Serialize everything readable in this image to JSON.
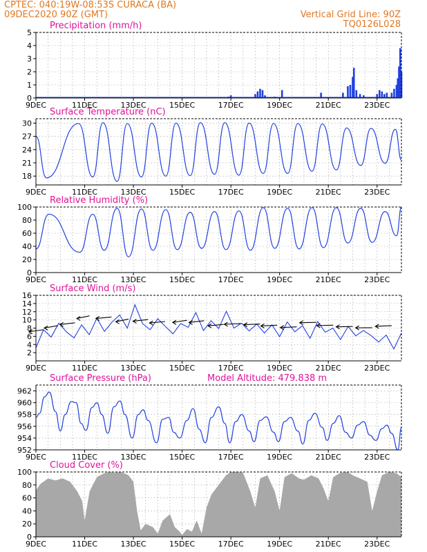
{
  "header": {
    "line1": "CPTEC:   040:19W-08:53S   CURACA (BA)",
    "line2": "09DEC2020 90Z (GMT)",
    "right1": "Vertical Grid Line: 90Z",
    "right2": "TQ0126L028"
  },
  "colors": {
    "header": "#e07820",
    "title": "#e0129a",
    "series": "#2040e0",
    "cloud": "#a8a8a8",
    "vector": "#000000"
  },
  "x_ticks": [
    "9DEC",
    "11DEC",
    "13DEC",
    "15DEC",
    "17DEC",
    "19DEC",
    "21DEC",
    "23DEC"
  ],
  "chart_data": [
    {
      "type": "bar",
      "title": "Precipitation (mm/h)",
      "x_range_days": [
        9,
        24
      ],
      "ylim": [
        0,
        5
      ],
      "yticks": [
        "0",
        "1",
        "2",
        "3",
        "4",
        "5"
      ],
      "bars": [
        [
          16.9,
          0.1
        ],
        [
          17.0,
          0.2
        ],
        [
          18.0,
          0.3
        ],
        [
          18.1,
          0.5
        ],
        [
          18.2,
          0.7
        ],
        [
          18.3,
          0.6
        ],
        [
          18.4,
          0.2
        ],
        [
          18.8,
          0.1
        ],
        [
          19.1,
          0.6
        ],
        [
          20.7,
          0.4
        ],
        [
          21.6,
          0.4
        ],
        [
          21.8,
          0.9
        ],
        [
          21.9,
          1.0
        ],
        [
          22.0,
          1.6
        ],
        [
          22.05,
          2.3
        ],
        [
          22.15,
          0.6
        ],
        [
          22.3,
          0.3
        ],
        [
          22.45,
          0.2
        ],
        [
          23.0,
          0.3
        ],
        [
          23.1,
          0.6
        ],
        [
          23.2,
          0.5
        ],
        [
          23.3,
          0.3
        ],
        [
          23.4,
          0.4
        ],
        [
          23.6,
          0.4
        ],
        [
          23.7,
          0.7
        ],
        [
          23.8,
          1.0
        ],
        [
          23.85,
          1.5
        ],
        [
          23.9,
          2.4
        ],
        [
          23.95,
          3.8
        ],
        [
          24.0,
          2.0
        ]
      ]
    },
    {
      "type": "line",
      "title": "Surface Temperature (nC)",
      "x_range_days": [
        9,
        24
      ],
      "ylim": [
        16,
        31
      ],
      "yticks": [
        "18",
        "21",
        "24",
        "27",
        "30"
      ],
      "maxima": [
        29.7,
        29.9,
        30.1,
        29.9,
        30.0,
        30.0,
        30.1,
        30.1,
        30.0,
        29.9,
        29.9,
        29.8,
        28.9,
        28.8,
        28.6,
        26.5
      ],
      "minima": [
        17.6,
        17.8,
        16.8,
        17.8,
        18.0,
        18.1,
        18.4,
        18.2,
        18.6,
        18.6,
        19.1,
        19.4,
        20.4,
        20.9,
        20.6
      ]
    },
    {
      "type": "line",
      "title": "Relative Humidity (%)",
      "x_range_days": [
        9,
        24
      ],
      "ylim": [
        0,
        100
      ],
      "yticks": [
        "0",
        "20",
        "40",
        "60",
        "80",
        "100"
      ],
      "minima": [
        36,
        31,
        34,
        24,
        34,
        35,
        37,
        35,
        34,
        37,
        36,
        38,
        45,
        46,
        56,
        60
      ],
      "maxima": [
        89,
        89,
        98,
        97,
        96,
        92,
        93,
        94,
        99,
        98,
        99,
        99,
        98,
        93,
        98
      ]
    },
    {
      "type": "line",
      "title": "Surface Wind (m/s)",
      "x_range_days": [
        9,
        24
      ],
      "ylim": [
        0,
        16
      ],
      "yticks": [
        "2",
        "4",
        "6",
        "8",
        "10",
        "12",
        "14",
        "16"
      ],
      "speed": [
        3.2,
        7.6,
        5.8,
        9.2,
        7.1,
        5.6,
        8.8,
        6.4,
        10.4,
        7.2,
        9.5,
        11.2,
        8.0,
        13.7,
        9.1,
        7.6,
        10.3,
        8.4,
        6.6,
        9.1,
        8.2,
        11.8,
        7.4,
        9.8,
        7.9,
        12.1,
        8.0,
        9.2,
        7.3,
        9.0,
        6.8,
        8.8,
        5.9,
        9.5,
        7.1,
        8.6,
        5.5,
        9.6,
        7.0,
        8.0,
        5.2,
        8.4,
        6.1,
        7.4,
        6.2,
        4.6,
        6.3,
        2.9,
        6.8
      ],
      "arrows": [
        [
          9.3,
          7.6,
          120
        ],
        [
          9.9,
          8.6,
          125
        ],
        [
          10.6,
          9.3,
          115
        ],
        [
          11.2,
          11.0,
          130
        ],
        [
          12.1,
          10.7,
          110
        ],
        [
          12.8,
          10.2,
          130
        ],
        [
          13.6,
          10.1,
          115
        ],
        [
          14.3,
          9.6,
          110
        ],
        [
          15.2,
          9.9,
          120
        ],
        [
          15.9,
          9.8,
          115
        ],
        [
          16.7,
          8.9,
          110
        ],
        [
          17.4,
          9.1,
          100
        ],
        [
          18.2,
          9.0,
          100
        ],
        [
          18.9,
          8.7,
          100
        ],
        [
          19.7,
          8.3,
          100
        ],
        [
          20.5,
          9.4,
          95
        ],
        [
          21.2,
          8.7,
          95
        ],
        [
          22.0,
          8.4,
          95
        ],
        [
          22.8,
          8.1,
          92
        ],
        [
          23.6,
          8.6,
          100
        ]
      ]
    },
    {
      "type": "line",
      "title": "Surface Pressure (hPa)",
      "subtitle": "Model Altitude: 479.838  m",
      "x_range_days": [
        9,
        24
      ],
      "ylim": [
        952,
        963
      ],
      "yticks": [
        "952",
        "954",
        "956",
        "958",
        "960",
        "962"
      ],
      "series": [
        [
          9.0,
          957.5
        ],
        [
          9.15,
          958.2
        ],
        [
          9.35,
          961.0
        ],
        [
          9.55,
          961.8
        ],
        [
          9.8,
          958.5
        ],
        [
          10.0,
          955.2
        ],
        [
          10.2,
          958.0
        ],
        [
          10.45,
          960.2
        ],
        [
          10.65,
          960.0
        ],
        [
          10.85,
          956.5
        ],
        [
          11.05,
          955.3
        ],
        [
          11.3,
          959.2
        ],
        [
          11.5,
          960.0
        ],
        [
          11.7,
          958.0
        ],
        [
          11.95,
          954.8
        ],
        [
          12.2,
          959.3
        ],
        [
          12.45,
          960.3
        ],
        [
          12.65,
          958.0
        ],
        [
          12.95,
          954.0
        ],
        [
          13.2,
          958.0
        ],
        [
          13.4,
          958.8
        ],
        [
          13.6,
          957.0
        ],
        [
          13.95,
          953.2
        ],
        [
          14.2,
          957.2
        ],
        [
          14.45,
          957.5
        ],
        [
          14.65,
          955.0
        ],
        [
          14.9,
          954.0
        ],
        [
          15.2,
          957.0
        ],
        [
          15.45,
          959.0
        ],
        [
          15.7,
          955.5
        ],
        [
          15.95,
          953.2
        ],
        [
          16.2,
          957.5
        ],
        [
          16.5,
          959.3
        ],
        [
          16.75,
          956.5
        ],
        [
          16.95,
          953.2
        ],
        [
          17.2,
          956.8
        ],
        [
          17.45,
          958.0
        ],
        [
          17.75,
          955.2
        ],
        [
          17.95,
          953.4
        ],
        [
          18.2,
          957.0
        ],
        [
          18.45,
          957.6
        ],
        [
          18.75,
          955.0
        ],
        [
          18.95,
          953.4
        ],
        [
          19.2,
          956.8
        ],
        [
          19.45,
          957.5
        ],
        [
          19.75,
          955.2
        ],
        [
          19.95,
          953.0
        ],
        [
          20.2,
          957.0
        ],
        [
          20.45,
          958.2
        ],
        [
          20.75,
          955.8
        ],
        [
          20.95,
          953.6
        ],
        [
          21.2,
          956.5
        ],
        [
          21.45,
          957.8
        ],
        [
          21.7,
          955.0
        ],
        [
          21.95,
          954.0
        ],
        [
          22.2,
          956.2
        ],
        [
          22.45,
          956.8
        ],
        [
          22.7,
          954.5
        ],
        [
          22.95,
          953.6
        ],
        [
          23.2,
          955.6
        ],
        [
          23.4,
          956.2
        ],
        [
          23.6,
          954.8
        ],
        [
          23.85,
          952.0
        ],
        [
          24.0,
          955.8
        ]
      ]
    },
    {
      "type": "area",
      "title": "Cloud Cover (%)",
      "x_range_days": [
        9,
        24
      ],
      "ylim": [
        0,
        100
      ],
      "yticks": [
        "0",
        "20",
        "40",
        "60",
        "80",
        "100"
      ],
      "series": [
        [
          9.0,
          72
        ],
        [
          9.2,
          82
        ],
        [
          9.5,
          90
        ],
        [
          9.8,
          87
        ],
        [
          10.1,
          90
        ],
        [
          10.4,
          85
        ],
        [
          10.7,
          70
        ],
        [
          10.9,
          55
        ],
        [
          11.0,
          25
        ],
        [
          11.2,
          70
        ],
        [
          11.5,
          92
        ],
        [
          11.8,
          98
        ],
        [
          12.0,
          100
        ],
        [
          12.2,
          99
        ],
        [
          12.5,
          100
        ],
        [
          12.8,
          95
        ],
        [
          13.0,
          85
        ],
        [
          13.15,
          40
        ],
        [
          13.3,
          10
        ],
        [
          13.5,
          20
        ],
        [
          13.8,
          15
        ],
        [
          14.0,
          5
        ],
        [
          14.2,
          25
        ],
        [
          14.5,
          35
        ],
        [
          14.7,
          15
        ],
        [
          14.9,
          8
        ],
        [
          15.0,
          3
        ],
        [
          15.2,
          12
        ],
        [
          15.4,
          8
        ],
        [
          15.6,
          25
        ],
        [
          15.8,
          5
        ],
        [
          16.0,
          45
        ],
        [
          16.2,
          65
        ],
        [
          16.5,
          80
        ],
        [
          16.8,
          95
        ],
        [
          17.0,
          100
        ],
        [
          17.2,
          100
        ],
        [
          17.5,
          99
        ],
        [
          17.8,
          70
        ],
        [
          18.0,
          45
        ],
        [
          18.2,
          90
        ],
        [
          18.5,
          95
        ],
        [
          18.8,
          70
        ],
        [
          19.0,
          40
        ],
        [
          19.2,
          92
        ],
        [
          19.5,
          98
        ],
        [
          19.8,
          90
        ],
        [
          20.0,
          88
        ],
        [
          20.3,
          95
        ],
        [
          20.6,
          90
        ],
        [
          20.8,
          75
        ],
        [
          21.0,
          55
        ],
        [
          21.2,
          92
        ],
        [
          21.5,
          99
        ],
        [
          21.8,
          100
        ],
        [
          22.0,
          95
        ],
        [
          22.3,
          90
        ],
        [
          22.6,
          85
        ],
        [
          22.8,
          40
        ],
        [
          23.0,
          70
        ],
        [
          23.2,
          95
        ],
        [
          23.5,
          100
        ],
        [
          23.8,
          98
        ],
        [
          24.0,
          92
        ]
      ]
    }
  ]
}
